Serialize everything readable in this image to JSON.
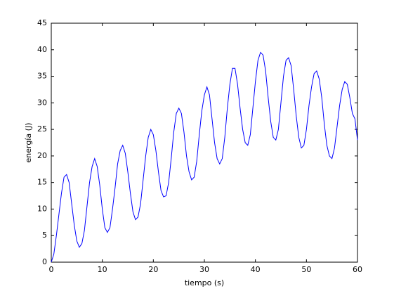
{
  "chart_data": {
    "type": "line",
    "xlabel": "tiempo (s)",
    "ylabel": "energía (J)",
    "x": [
      0,
      0.5,
      1,
      1.5,
      2,
      2.5,
      3,
      3.5,
      4,
      4.5,
      5,
      5.5,
      6,
      6.5,
      7,
      7.5,
      8,
      8.5,
      9,
      9.5,
      10,
      10.5,
      11,
      11.5,
      12,
      12.5,
      13,
      13.5,
      14,
      14.5,
      15,
      15.5,
      16,
      16.5,
      17,
      17.5,
      18,
      18.5,
      19,
      19.5,
      20,
      20.5,
      21,
      21.5,
      22,
      22.5,
      23,
      23.5,
      24,
      24.5,
      25,
      25.5,
      26,
      26.5,
      27,
      27.5,
      28,
      28.5,
      29,
      29.5,
      30,
      30.5,
      31,
      31.5,
      32,
      32.5,
      33,
      33.5,
      34,
      34.5,
      35,
      35.5,
      36,
      36.5,
      37,
      37.5,
      38,
      38.5,
      39,
      39.5,
      40,
      40.5,
      41,
      41.5,
      42,
      42.5,
      43,
      43.5,
      44,
      44.5,
      45,
      45.5,
      46,
      46.5,
      47,
      47.5,
      48,
      48.5,
      49,
      49.5,
      50,
      50.5,
      51,
      51.5,
      52,
      52.5,
      53,
      53.5,
      54,
      54.5,
      55,
      55.5,
      56,
      56.5,
      57,
      57.5,
      58,
      58.5,
      59,
      59.5,
      60
    ],
    "series": [
      {
        "name": "energía",
        "color": "#0000ff",
        "values": [
          0,
          1.5,
          5,
          9,
          13,
          16,
          16.5,
          15,
          11,
          7,
          4,
          2.8,
          3.5,
          6,
          10.5,
          15,
          18,
          19.5,
          18,
          14.5,
          10,
          6.5,
          5.6,
          6.5,
          10,
          14,
          18.5,
          21,
          22,
          20.5,
          17,
          13,
          9.5,
          8,
          8.5,
          11,
          15.5,
          20,
          23.5,
          25,
          24,
          21,
          17,
          13.5,
          12.3,
          12.5,
          15,
          19.5,
          24.5,
          28,
          29,
          28,
          24.5,
          20,
          17,
          15.5,
          16,
          19,
          24,
          28.5,
          31.5,
          33,
          31.5,
          27,
          22.5,
          19.5,
          18.5,
          19.5,
          23.5,
          29,
          33.5,
          36.5,
          36.5,
          33.5,
          29,
          25,
          22.5,
          22,
          24,
          29,
          34,
          38,
          39.5,
          39,
          36,
          31,
          26.5,
          23.5,
          23,
          25,
          30,
          35,
          38,
          38.5,
          37,
          32.5,
          27.5,
          23.5,
          21.5,
          22,
          25,
          29.5,
          33,
          35.5,
          36,
          34.5,
          31,
          26,
          22,
          20,
          19.5,
          21.5,
          25.5,
          29.5,
          32.5,
          34,
          33.5,
          31,
          28,
          27,
          23
        ]
      }
    ],
    "xlim": [
      0,
      60
    ],
    "xticks": [
      0,
      10,
      20,
      30,
      40,
      50,
      60
    ],
    "ylim": [
      0,
      45
    ],
    "yticks": [
      0,
      5,
      10,
      15,
      20,
      25,
      30,
      35,
      40,
      45
    ]
  }
}
